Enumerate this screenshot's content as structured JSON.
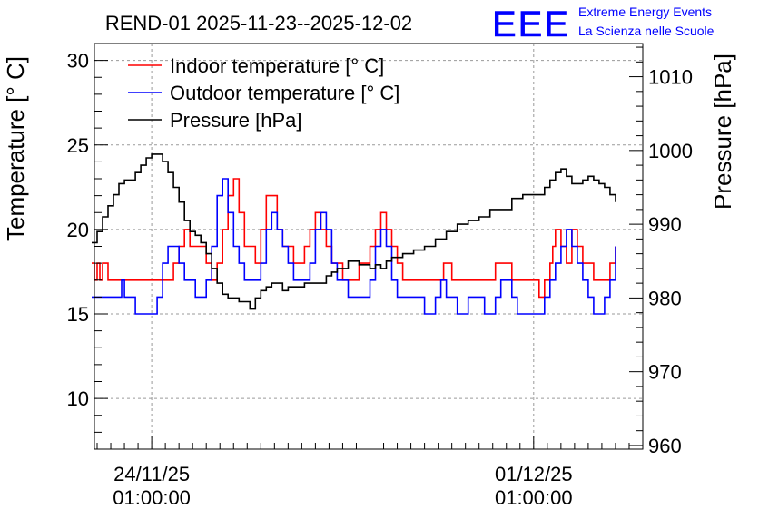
{
  "title": "REND-01 2025-11-23--2025-12-02",
  "logo": {
    "text": "EEE",
    "line1": "Extreme Energy Events",
    "line2": "La Scienza nelle Scuole",
    "color": "#0000ff"
  },
  "chart_data": {
    "type": "line",
    "title": "REND-01 2025-11-23--2025-12-02",
    "ylabel": "Temperature [° C]",
    "y2label": "Pressure [hPa]",
    "ylim": [
      7,
      31
    ],
    "y2lim": [
      959.5,
      1014.5
    ],
    "ylim_note": "temperature axis",
    "xlim": [
      -1.05,
      9.0
    ],
    "x_unit": "days since 24/11/25 01:00:00",
    "x_ticks": [
      {
        "x": 0,
        "line1": "24/11/25",
        "line2": "01:00:00"
      },
      {
        "x": 7,
        "line1": "01/12/25",
        "line2": "01:00:00"
      }
    ],
    "y_ticks": [
      10,
      15,
      20,
      25,
      30
    ],
    "y2_ticks": [
      960,
      970,
      980,
      990,
      1000,
      1010
    ],
    "grid": true,
    "legend_position": "top-left",
    "series": [
      {
        "name": "Indoor temperature [° C]",
        "axis": "left",
        "color": "#ff0000",
        "x": [
          -1.1,
          -1.05,
          -1.0,
          -0.95,
          -0.9,
          -0.8,
          -0.7,
          -0.5,
          -0.3,
          0.0,
          0.2,
          0.35,
          0.4,
          0.5,
          0.6,
          0.7,
          0.8,
          1.0,
          1.1,
          1.2,
          1.3,
          1.4,
          1.5,
          1.6,
          1.7,
          1.9,
          2.0,
          2.1,
          2.2,
          2.3,
          2.4,
          2.5,
          2.6,
          2.7,
          2.8,
          2.9,
          3.0,
          3.1,
          3.2,
          3.3,
          3.4,
          3.5,
          3.6,
          3.7,
          3.8,
          3.9,
          4.0,
          4.1,
          4.2,
          4.3,
          4.4,
          4.5,
          4.6,
          4.8,
          5.0,
          5.2,
          5.35,
          5.45,
          5.5,
          5.6,
          5.8,
          6.0,
          6.2,
          6.3,
          6.4,
          6.6,
          6.8,
          6.9,
          7.1,
          7.2,
          7.3,
          7.35,
          7.4,
          7.45,
          7.5,
          7.6,
          7.7,
          7.8,
          7.9,
          8.0,
          8.1,
          8.2,
          8.25,
          8.3,
          8.4,
          8.5
        ],
        "y": [
          18,
          17,
          18,
          17,
          18,
          17,
          17,
          17,
          17,
          17,
          17,
          17,
          18,
          19,
          20,
          19,
          19,
          18,
          17,
          18,
          20,
          22,
          23,
          21,
          19,
          18,
          20,
          22,
          22,
          20,
          19,
          19,
          18,
          18,
          19,
          20,
          21,
          20,
          19,
          18,
          18,
          17,
          17,
          17,
          18,
          18,
          19,
          20,
          21,
          20,
          19,
          18,
          17,
          17,
          17,
          17,
          18,
          18,
          17,
          17,
          17,
          17,
          17,
          18,
          18,
          17,
          17,
          17,
          16,
          17,
          18,
          19,
          20,
          20,
          19,
          18,
          20,
          19,
          18,
          18,
          17,
          17,
          17,
          17,
          18,
          19
        ]
      },
      {
        "name": "Outdoor temperature [° C]",
        "axis": "left",
        "color": "#0000ff",
        "x": [
          -1.1,
          -1.0,
          -0.9,
          -0.8,
          -0.7,
          -0.6,
          -0.55,
          -0.5,
          -0.4,
          -0.3,
          -0.2,
          -0.1,
          0.0,
          0.1,
          0.2,
          0.3,
          0.4,
          0.5,
          0.6,
          0.7,
          0.8,
          0.9,
          1.0,
          1.1,
          1.2,
          1.3,
          1.4,
          1.5,
          1.6,
          1.7,
          1.8,
          1.9,
          2.0,
          2.1,
          2.2,
          2.3,
          2.4,
          2.5,
          2.6,
          2.7,
          2.8,
          2.9,
          3.0,
          3.1,
          3.2,
          3.3,
          3.4,
          3.5,
          3.6,
          3.7,
          3.8,
          3.9,
          4.0,
          4.1,
          4.2,
          4.3,
          4.4,
          4.5,
          4.6,
          4.7,
          4.8,
          4.9,
          5.0,
          5.1,
          5.2,
          5.3,
          5.4,
          5.5,
          5.6,
          5.7,
          5.8,
          5.9,
          6.0,
          6.1,
          6.2,
          6.3,
          6.4,
          6.5,
          6.6,
          6.7,
          6.8,
          6.9,
          7.0,
          7.1,
          7.2,
          7.3,
          7.4,
          7.5,
          7.6,
          7.7,
          7.8,
          7.9,
          8.0,
          8.1,
          8.2,
          8.3,
          8.4,
          8.5
        ],
        "y": [
          16,
          16,
          16,
          16,
          16,
          16,
          17,
          16,
          16,
          15,
          15,
          15,
          15,
          16,
          18,
          19,
          19,
          18,
          17,
          17,
          16,
          16,
          17,
          19,
          22,
          23,
          21,
          19,
          18,
          17,
          17,
          17,
          18,
          20,
          21,
          20,
          19,
          18,
          17,
          17,
          17,
          18,
          20,
          21,
          20,
          18,
          17,
          17,
          16,
          16,
          16,
          16,
          17,
          19,
          20,
          19,
          17,
          16,
          16,
          16,
          16,
          16,
          15,
          15,
          16,
          17,
          16,
          16,
          15,
          15,
          16,
          16,
          16,
          15,
          15,
          16,
          17,
          17,
          16,
          15,
          15,
          15,
          15,
          15,
          16,
          17,
          18,
          19,
          20,
          19,
          18,
          17,
          16,
          15,
          15,
          16,
          17,
          19
        ]
      },
      {
        "name": "Pressure [hPa]",
        "axis": "right",
        "color": "#000000",
        "x": [
          -1.1,
          -1.0,
          -0.9,
          -0.8,
          -0.7,
          -0.6,
          -0.5,
          -0.4,
          -0.3,
          -0.2,
          -0.1,
          0.0,
          0.1,
          0.2,
          0.3,
          0.4,
          0.5,
          0.6,
          0.7,
          0.8,
          0.9,
          1.0,
          1.1,
          1.2,
          1.3,
          1.4,
          1.5,
          1.6,
          1.7,
          1.8,
          1.9,
          2.0,
          2.1,
          2.2,
          2.3,
          2.4,
          2.5,
          2.6,
          2.7,
          2.8,
          2.9,
          3.0,
          3.1,
          3.2,
          3.3,
          3.4,
          3.5,
          3.6,
          3.7,
          3.8,
          3.9,
          4.0,
          4.1,
          4.2,
          4.3,
          4.4,
          4.5,
          4.6,
          4.8,
          5.0,
          5.2,
          5.4,
          5.6,
          5.8,
          6.0,
          6.2,
          6.4,
          6.6,
          6.8,
          7.0,
          7.2,
          7.3,
          7.4,
          7.5,
          7.6,
          7.7,
          7.8,
          7.9,
          8.0,
          8.1,
          8.2,
          8.3,
          8.4,
          8.5
        ],
        "y": [
          987.5,
          989,
          991,
          992.5,
          994,
          995.5,
          996,
          996,
          997,
          998,
          999,
          999.5,
          999.5,
          998.5,
          997,
          995,
          993,
          990.5,
          989,
          988.5,
          987.5,
          986,
          984,
          982,
          980.5,
          980,
          980,
          979.5,
          979.5,
          978.5,
          980,
          981,
          981.5,
          982,
          982,
          981,
          981.5,
          981.5,
          981.5,
          982,
          982,
          982,
          982,
          983,
          983.5,
          984,
          984,
          985,
          985,
          984.5,
          984.5,
          984,
          984.5,
          984,
          985,
          985.5,
          985.5,
          986,
          986.5,
          987,
          988,
          989,
          990,
          990.5,
          991,
          992,
          992,
          993.5,
          994,
          994,
          995,
          996,
          997,
          997.5,
          996.5,
          995.5,
          995.5,
          996,
          996.5,
          996,
          995.5,
          995,
          994,
          993
        ]
      }
    ]
  }
}
